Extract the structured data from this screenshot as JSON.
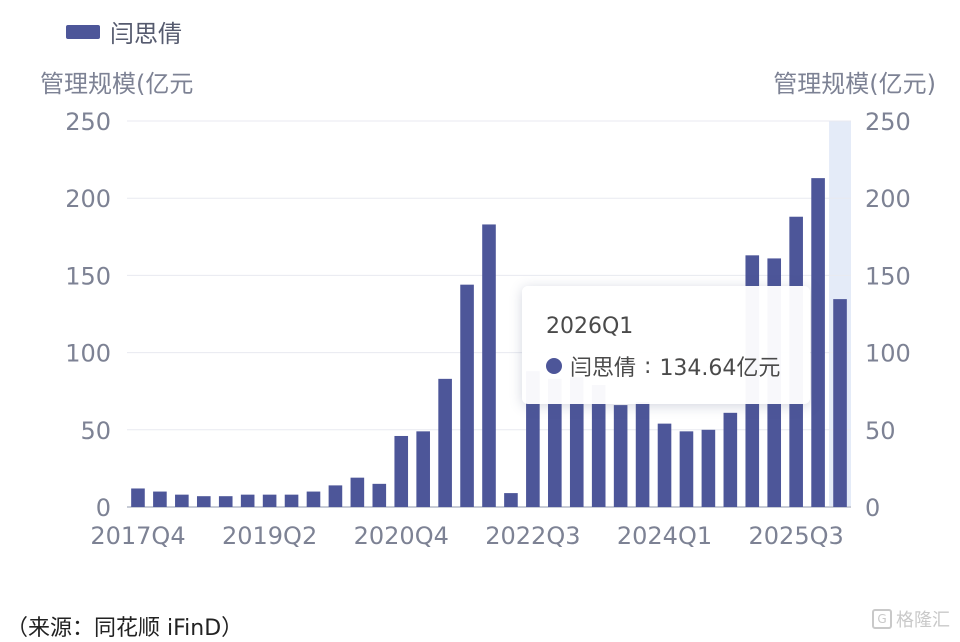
{
  "legend": {
    "label": "闫思倩",
    "color": "#4d5699"
  },
  "chart_data": {
    "type": "bar",
    "title": "",
    "ylabel_left": "管理规模(亿元",
    "ylabel_right": "管理规模(亿元)",
    "ylim": [
      0,
      250
    ],
    "yticks": [
      "0",
      "50",
      "100",
      "150",
      "200",
      "250"
    ],
    "x_tick_labels": [
      "2017Q4",
      "2019Q2",
      "2020Q4",
      "2022Q3",
      "2024Q1",
      "2025Q3"
    ],
    "x_tick_category_index": [
      0,
      6,
      12,
      18,
      24,
      30
    ],
    "categories": [
      "2017Q4",
      "2018Q1",
      "2018Q2",
      "2018Q3",
      "2018Q4",
      "2019Q1",
      "2019Q2",
      "2019Q3",
      "2019Q4",
      "2020Q1",
      "2020Q2",
      "2020Q3",
      "2020Q4",
      "2021Q1",
      "2021Q2",
      "2021Q3",
      "2021Q4",
      "2022Q2",
      "2022Q3",
      "2022Q4",
      "2023Q1",
      "2023Q2",
      "2023Q3",
      "2023Q4",
      "2024Q1",
      "2024Q2",
      "2024Q3",
      "2024Q4",
      "2025Q1",
      "2025Q2",
      "2025Q3",
      "2025Q4",
      "2026Q1"
    ],
    "series": [
      {
        "name": "闫思倩",
        "color": "#4d5699",
        "values": [
          12,
          10,
          8,
          7,
          7,
          8,
          8,
          8,
          10,
          14,
          19,
          15,
          46,
          49,
          83,
          144,
          183,
          9,
          88,
          83,
          84,
          79,
          66,
          68,
          54,
          49,
          50,
          61,
          163,
          161,
          188,
          213,
          134.64
        ]
      }
    ],
    "highlight_index": 32,
    "grid": true
  },
  "tooltip": {
    "title": "2026Q1",
    "series_name": "闫思倩",
    "value": "134.64亿元"
  },
  "source": "（来源：同花顺 iFinD）",
  "watermark": "格隆汇"
}
